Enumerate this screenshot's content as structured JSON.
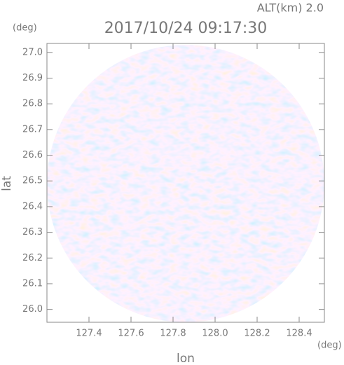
{
  "chart_data": {
    "type": "radar-ppi",
    "title": "2017/10/24 09:17:30",
    "annotation": "ALT(km) 2.0",
    "y_unit": "(deg)",
    "x_unit": "(deg)",
    "x_label": "lon",
    "y_label": "lat",
    "xlim": [
      127.2,
      128.52
    ],
    "ylim": [
      25.95,
      27.035
    ],
    "xticks": [
      127.4,
      127.6,
      127.8,
      {
        "value": 128.0,
        "label": "128.0"
      },
      128.2,
      128.4
    ],
    "yticks": [
      {
        "value": 26.0,
        "label": "26.0"
      },
      26.1,
      26.2,
      26.3,
      26.4,
      26.5,
      26.6,
      26.7,
      26.8,
      26.9,
      {
        "value": 27.0,
        "label": "27.0"
      }
    ]
  }
}
